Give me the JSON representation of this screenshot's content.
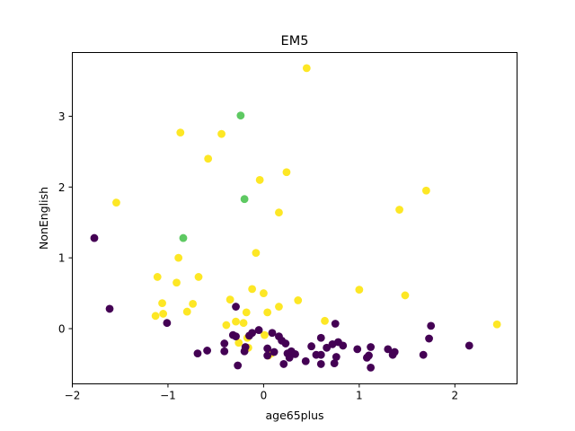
{
  "chart_data": {
    "type": "scatter",
    "title": "EM5",
    "xlabel": "age65plus",
    "ylabel": "NonEnglish",
    "xlim": [
      -2.0,
      2.65
    ],
    "ylim": [
      -0.78,
      3.9
    ],
    "xticks": [
      -2,
      -1,
      0,
      1,
      2
    ],
    "yticks": [
      0,
      1,
      2,
      3
    ],
    "grid": false,
    "colors": {
      "purple": "#440154",
      "green": "#5ec962",
      "yellow": "#fde725"
    },
    "points": [
      {
        "x": 0.45,
        "y": 3.68,
        "c": "yellow"
      },
      {
        "x": -0.87,
        "y": 2.77,
        "c": "yellow"
      },
      {
        "x": -0.44,
        "y": 2.75,
        "c": "yellow"
      },
      {
        "x": -0.58,
        "y": 2.4,
        "c": "yellow"
      },
      {
        "x": 0.24,
        "y": 2.21,
        "c": "yellow"
      },
      {
        "x": -0.04,
        "y": 2.1,
        "c": "yellow"
      },
      {
        "x": 1.7,
        "y": 1.95,
        "c": "yellow"
      },
      {
        "x": -1.54,
        "y": 1.78,
        "c": "yellow"
      },
      {
        "x": 1.42,
        "y": 1.68,
        "c": "yellow"
      },
      {
        "x": 0.16,
        "y": 1.64,
        "c": "yellow"
      },
      {
        "x": -0.08,
        "y": 1.07,
        "c": "yellow"
      },
      {
        "x": -0.89,
        "y": 1.0,
        "c": "yellow"
      },
      {
        "x": -1.11,
        "y": 0.73,
        "c": "yellow"
      },
      {
        "x": -0.68,
        "y": 0.73,
        "c": "yellow"
      },
      {
        "x": -0.91,
        "y": 0.65,
        "c": "yellow"
      },
      {
        "x": -0.12,
        "y": 0.56,
        "c": "yellow"
      },
      {
        "x": 1.0,
        "y": 0.55,
        "c": "yellow"
      },
      {
        "x": 0.0,
        "y": 0.5,
        "c": "yellow"
      },
      {
        "x": 1.48,
        "y": 0.47,
        "c": "yellow"
      },
      {
        "x": -0.35,
        "y": 0.41,
        "c": "yellow"
      },
      {
        "x": 0.36,
        "y": 0.4,
        "c": "yellow"
      },
      {
        "x": -1.06,
        "y": 0.36,
        "c": "yellow"
      },
      {
        "x": -0.74,
        "y": 0.35,
        "c": "yellow"
      },
      {
        "x": 0.16,
        "y": 0.31,
        "c": "yellow"
      },
      {
        "x": -0.8,
        "y": 0.24,
        "c": "yellow"
      },
      {
        "x": 0.04,
        "y": 0.23,
        "c": "yellow"
      },
      {
        "x": -0.18,
        "y": 0.23,
        "c": "yellow"
      },
      {
        "x": -1.05,
        "y": 0.21,
        "c": "yellow"
      },
      {
        "x": -1.13,
        "y": 0.18,
        "c": "yellow"
      },
      {
        "x": 0.64,
        "y": 0.11,
        "c": "yellow"
      },
      {
        "x": -0.29,
        "y": 0.1,
        "c": "yellow"
      },
      {
        "x": -0.21,
        "y": 0.08,
        "c": "yellow"
      },
      {
        "x": 2.44,
        "y": 0.06,
        "c": "yellow"
      },
      {
        "x": -0.39,
        "y": 0.05,
        "c": "yellow"
      },
      {
        "x": 0.01,
        "y": -0.09,
        "c": "yellow"
      },
      {
        "x": -0.17,
        "y": -0.13,
        "c": "yellow"
      },
      {
        "x": -0.26,
        "y": -0.2,
        "c": "yellow"
      },
      {
        "x": -0.16,
        "y": -0.27,
        "c": "yellow"
      },
      {
        "x": 0.08,
        "y": -0.35,
        "c": "yellow"
      },
      {
        "x": 0.05,
        "y": -0.38,
        "c": "yellow"
      },
      {
        "x": -0.24,
        "y": 3.01,
        "c": "green"
      },
      {
        "x": -0.2,
        "y": 1.83,
        "c": "green"
      },
      {
        "x": -0.84,
        "y": 1.28,
        "c": "green"
      },
      {
        "x": -1.77,
        "y": 1.28,
        "c": "purple"
      },
      {
        "x": -1.61,
        "y": 0.28,
        "c": "purple"
      },
      {
        "x": -1.01,
        "y": 0.08,
        "c": "purple"
      },
      {
        "x": -0.29,
        "y": 0.31,
        "c": "purple"
      },
      {
        "x": 0.75,
        "y": 0.07,
        "c": "purple"
      },
      {
        "x": 1.75,
        "y": 0.04,
        "c": "purple"
      },
      {
        "x": -0.05,
        "y": -0.02,
        "c": "purple"
      },
      {
        "x": 0.09,
        "y": -0.06,
        "c": "purple"
      },
      {
        "x": -0.12,
        "y": -0.06,
        "c": "purple"
      },
      {
        "x": -0.32,
        "y": -0.09,
        "c": "purple"
      },
      {
        "x": -0.15,
        "y": -0.1,
        "c": "purple"
      },
      {
        "x": -0.29,
        "y": -0.11,
        "c": "purple"
      },
      {
        "x": 0.16,
        "y": -0.11,
        "c": "purple"
      },
      {
        "x": 0.6,
        "y": -0.13,
        "c": "purple"
      },
      {
        "x": 1.73,
        "y": -0.14,
        "c": "purple"
      },
      {
        "x": 0.19,
        "y": -0.17,
        "c": "purple"
      },
      {
        "x": 0.78,
        "y": -0.19,
        "c": "purple"
      },
      {
        "x": -0.41,
        "y": -0.21,
        "c": "purple"
      },
      {
        "x": 0.23,
        "y": -0.21,
        "c": "purple"
      },
      {
        "x": 0.72,
        "y": -0.22,
        "c": "purple"
      },
      {
        "x": 0.83,
        "y": -0.24,
        "c": "purple"
      },
      {
        "x": 2.15,
        "y": -0.24,
        "c": "purple"
      },
      {
        "x": 0.5,
        "y": -0.25,
        "c": "purple"
      },
      {
        "x": -0.19,
        "y": -0.26,
        "c": "purple"
      },
      {
        "x": 0.66,
        "y": -0.27,
        "c": "purple"
      },
      {
        "x": 1.12,
        "y": -0.26,
        "c": "purple"
      },
      {
        "x": 0.04,
        "y": -0.28,
        "c": "purple"
      },
      {
        "x": 0.98,
        "y": -0.29,
        "c": "purple"
      },
      {
        "x": 1.3,
        "y": -0.29,
        "c": "purple"
      },
      {
        "x": -0.59,
        "y": -0.31,
        "c": "purple"
      },
      {
        "x": -0.41,
        "y": -0.32,
        "c": "purple"
      },
      {
        "x": -0.2,
        "y": -0.32,
        "c": "purple"
      },
      {
        "x": 0.29,
        "y": -0.32,
        "c": "purple"
      },
      {
        "x": 0.11,
        "y": -0.33,
        "c": "purple"
      },
      {
        "x": 1.37,
        "y": -0.33,
        "c": "purple"
      },
      {
        "x": 0.25,
        "y": -0.35,
        "c": "purple"
      },
      {
        "x": -0.69,
        "y": -0.35,
        "c": "purple"
      },
      {
        "x": 0.33,
        "y": -0.36,
        "c": "purple"
      },
      {
        "x": 0.55,
        "y": -0.37,
        "c": "purple"
      },
      {
        "x": 1.35,
        "y": -0.37,
        "c": "purple"
      },
      {
        "x": 0.6,
        "y": -0.37,
        "c": "purple"
      },
      {
        "x": 1.1,
        "y": -0.38,
        "c": "purple"
      },
      {
        "x": 1.67,
        "y": -0.37,
        "c": "purple"
      },
      {
        "x": 0.04,
        "y": -0.38,
        "c": "purple"
      },
      {
        "x": 0.76,
        "y": -0.4,
        "c": "purple"
      },
      {
        "x": 1.08,
        "y": -0.41,
        "c": "purple"
      },
      {
        "x": 0.27,
        "y": -0.41,
        "c": "purple"
      },
      {
        "x": 0.44,
        "y": -0.46,
        "c": "purple"
      },
      {
        "x": 0.21,
        "y": -0.5,
        "c": "purple"
      },
      {
        "x": 0.6,
        "y": -0.5,
        "c": "purple"
      },
      {
        "x": 0.74,
        "y": -0.49,
        "c": "purple"
      },
      {
        "x": -0.27,
        "y": -0.52,
        "c": "purple"
      },
      {
        "x": 1.12,
        "y": -0.55,
        "c": "purple"
      }
    ]
  }
}
